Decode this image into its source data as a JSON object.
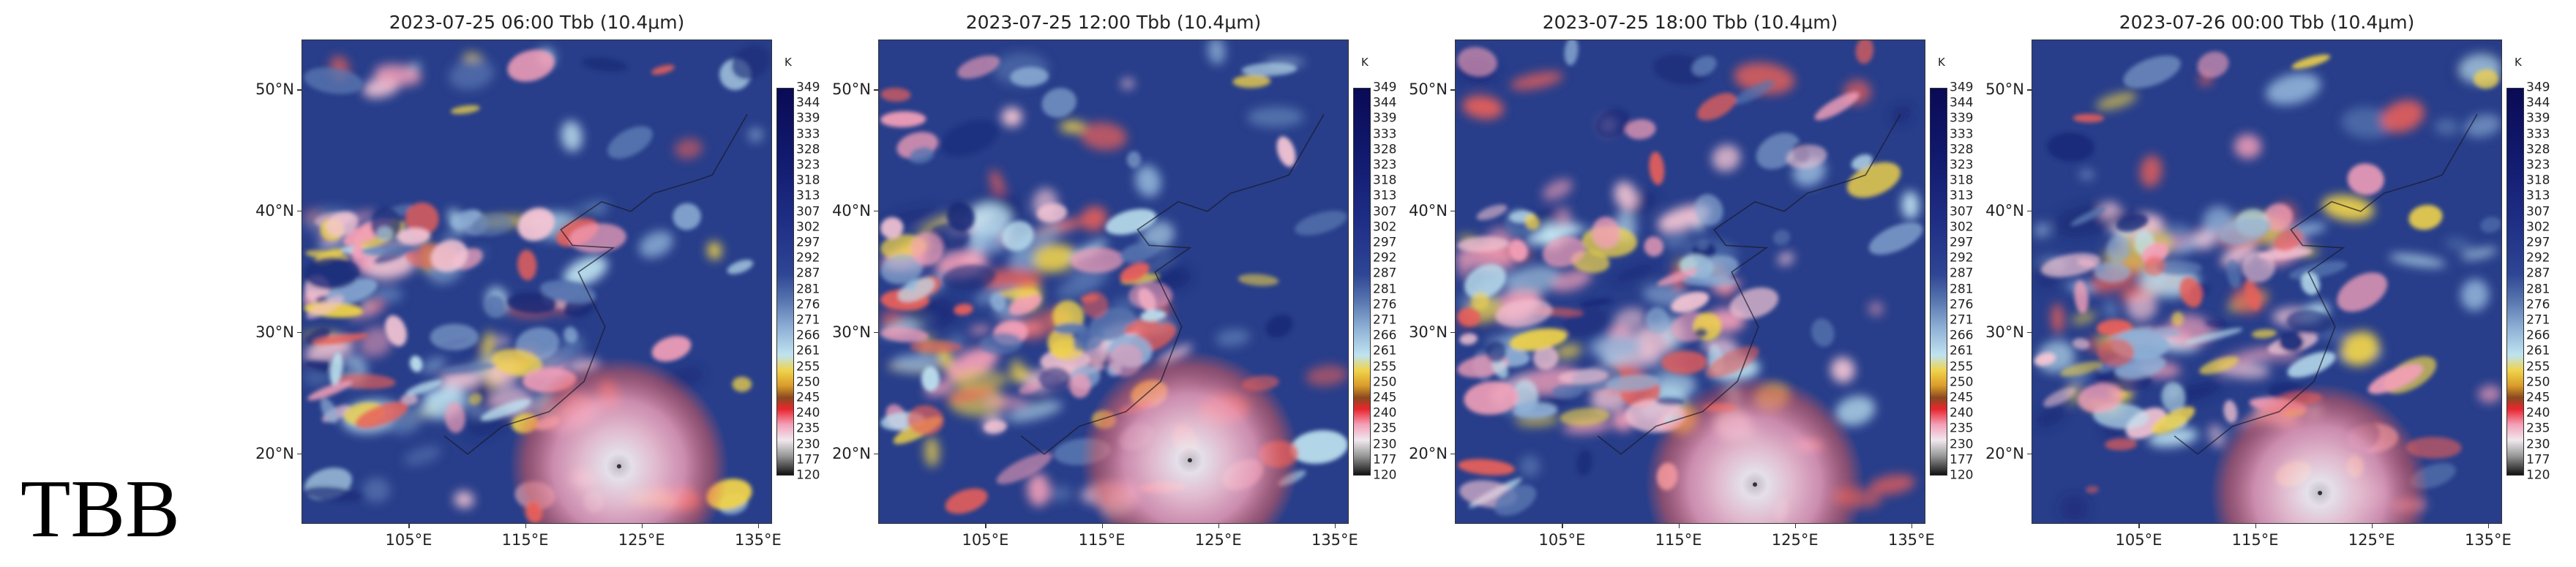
{
  "row_label": "TBB",
  "chart_data": {
    "type": "heatmap",
    "panels": [
      {
        "title": "2023-07-25 06:00 Tbb (10.4μm)"
      },
      {
        "title": "2023-07-25 12:00 Tbb (10.4μm)"
      },
      {
        "title": "2023-07-25 18:00 Tbb (10.4μm)"
      },
      {
        "title": "2023-07-26 00:00 Tbb (10.4μm)"
      }
    ],
    "lon_ticks": [
      "105°E",
      "115°E",
      "125°E",
      "135°E"
    ],
    "lat_ticks": [
      "50°N",
      "40°N",
      "30°N",
      "20°N"
    ],
    "lon_values": [
      105,
      115,
      125,
      135
    ],
    "lat_values": [
      50,
      40,
      30,
      20
    ],
    "xlim": [
      95.8,
      136.2
    ],
    "ylim": [
      14.2,
      54.1
    ],
    "colorbar": {
      "unit": "K",
      "ticks": [
        "349",
        "344",
        "339",
        "333",
        "328",
        "323",
        "318",
        "313",
        "307",
        "302",
        "297",
        "292",
        "287",
        "281",
        "276",
        "271",
        "266",
        "261",
        "255",
        "250",
        "245",
        "240",
        "235",
        "230",
        "177",
        "120"
      ],
      "colors": [
        "#0a0a55",
        "#1f2f86",
        "#5876b0",
        "#bfe3f0",
        "#f0d34a",
        "#8a4a20",
        "#e8262e",
        "#f4a0b8",
        "#f0e8ee",
        "#111111"
      ]
    }
  }
}
